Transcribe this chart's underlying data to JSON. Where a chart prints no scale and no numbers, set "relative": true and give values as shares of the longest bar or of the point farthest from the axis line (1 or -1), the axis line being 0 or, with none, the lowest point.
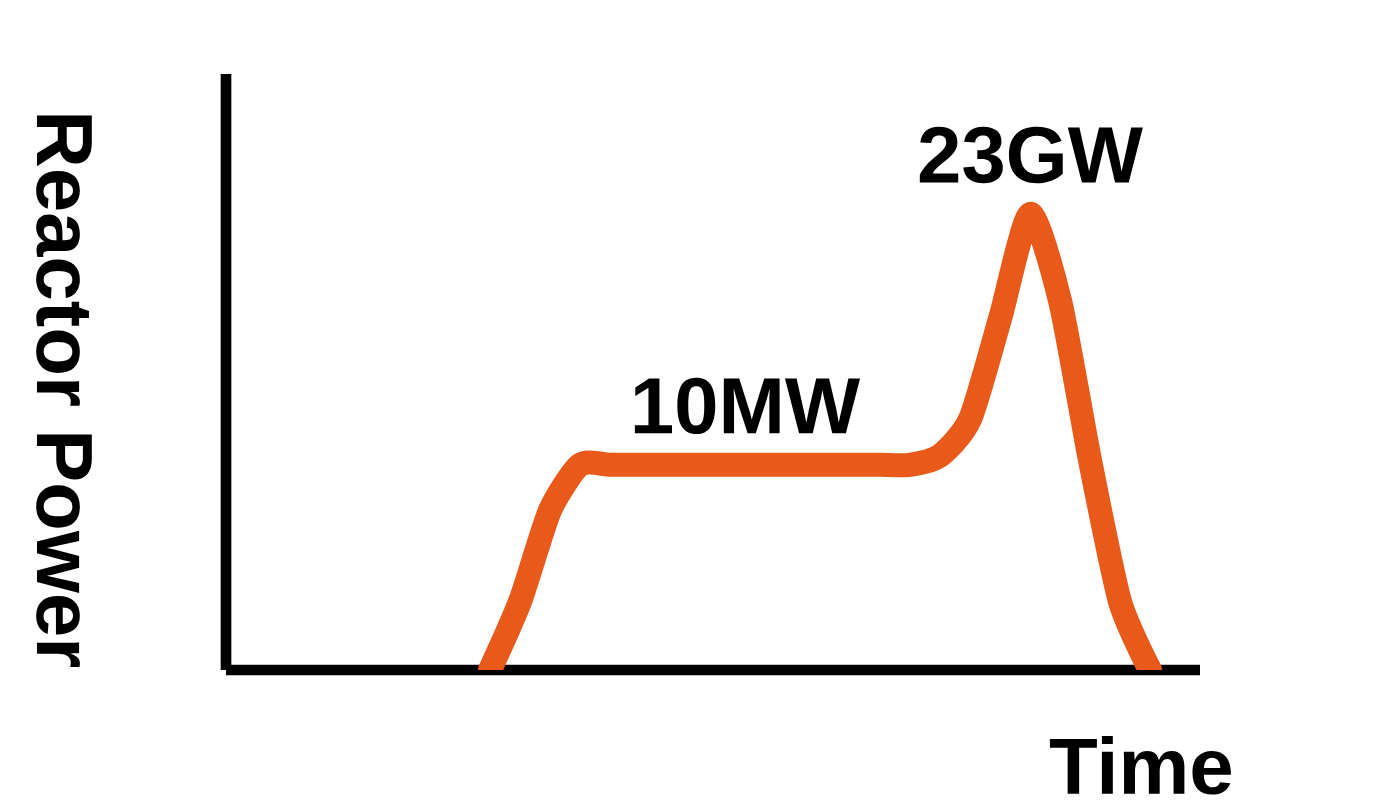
{
  "chart_data": {
    "type": "line",
    "relative": true,
    "xlabel": "Time",
    "ylabel": "Reactor Power",
    "categories": [
      null,
      null,
      null,
      null,
      null,
      null,
      null,
      null,
      null,
      null,
      null,
      null,
      null,
      null,
      null,
      null,
      null,
      null,
      null,
      null,
      null,
      null,
      null
    ],
    "series": [
      {
        "color": "#e8591a",
        "values": [
          0,
          0.15,
          0.35,
          0.45,
          0.45,
          0.45,
          0.45,
          0.45,
          0.45,
          0.45,
          0.45,
          0.45,
          0.45,
          0.45,
          0.45,
          0.47,
          0.55,
          0.77,
          1,
          0.81,
          0.46,
          0.15,
          0
        ]
      }
    ],
    "annotations": [
      {
        "text": "10MW",
        "y": 0.45
      },
      {
        "text": "23GW",
        "y": 1
      }
    ],
    "grid": false,
    "marker": "none",
    "line_style": "solid"
  }
}
